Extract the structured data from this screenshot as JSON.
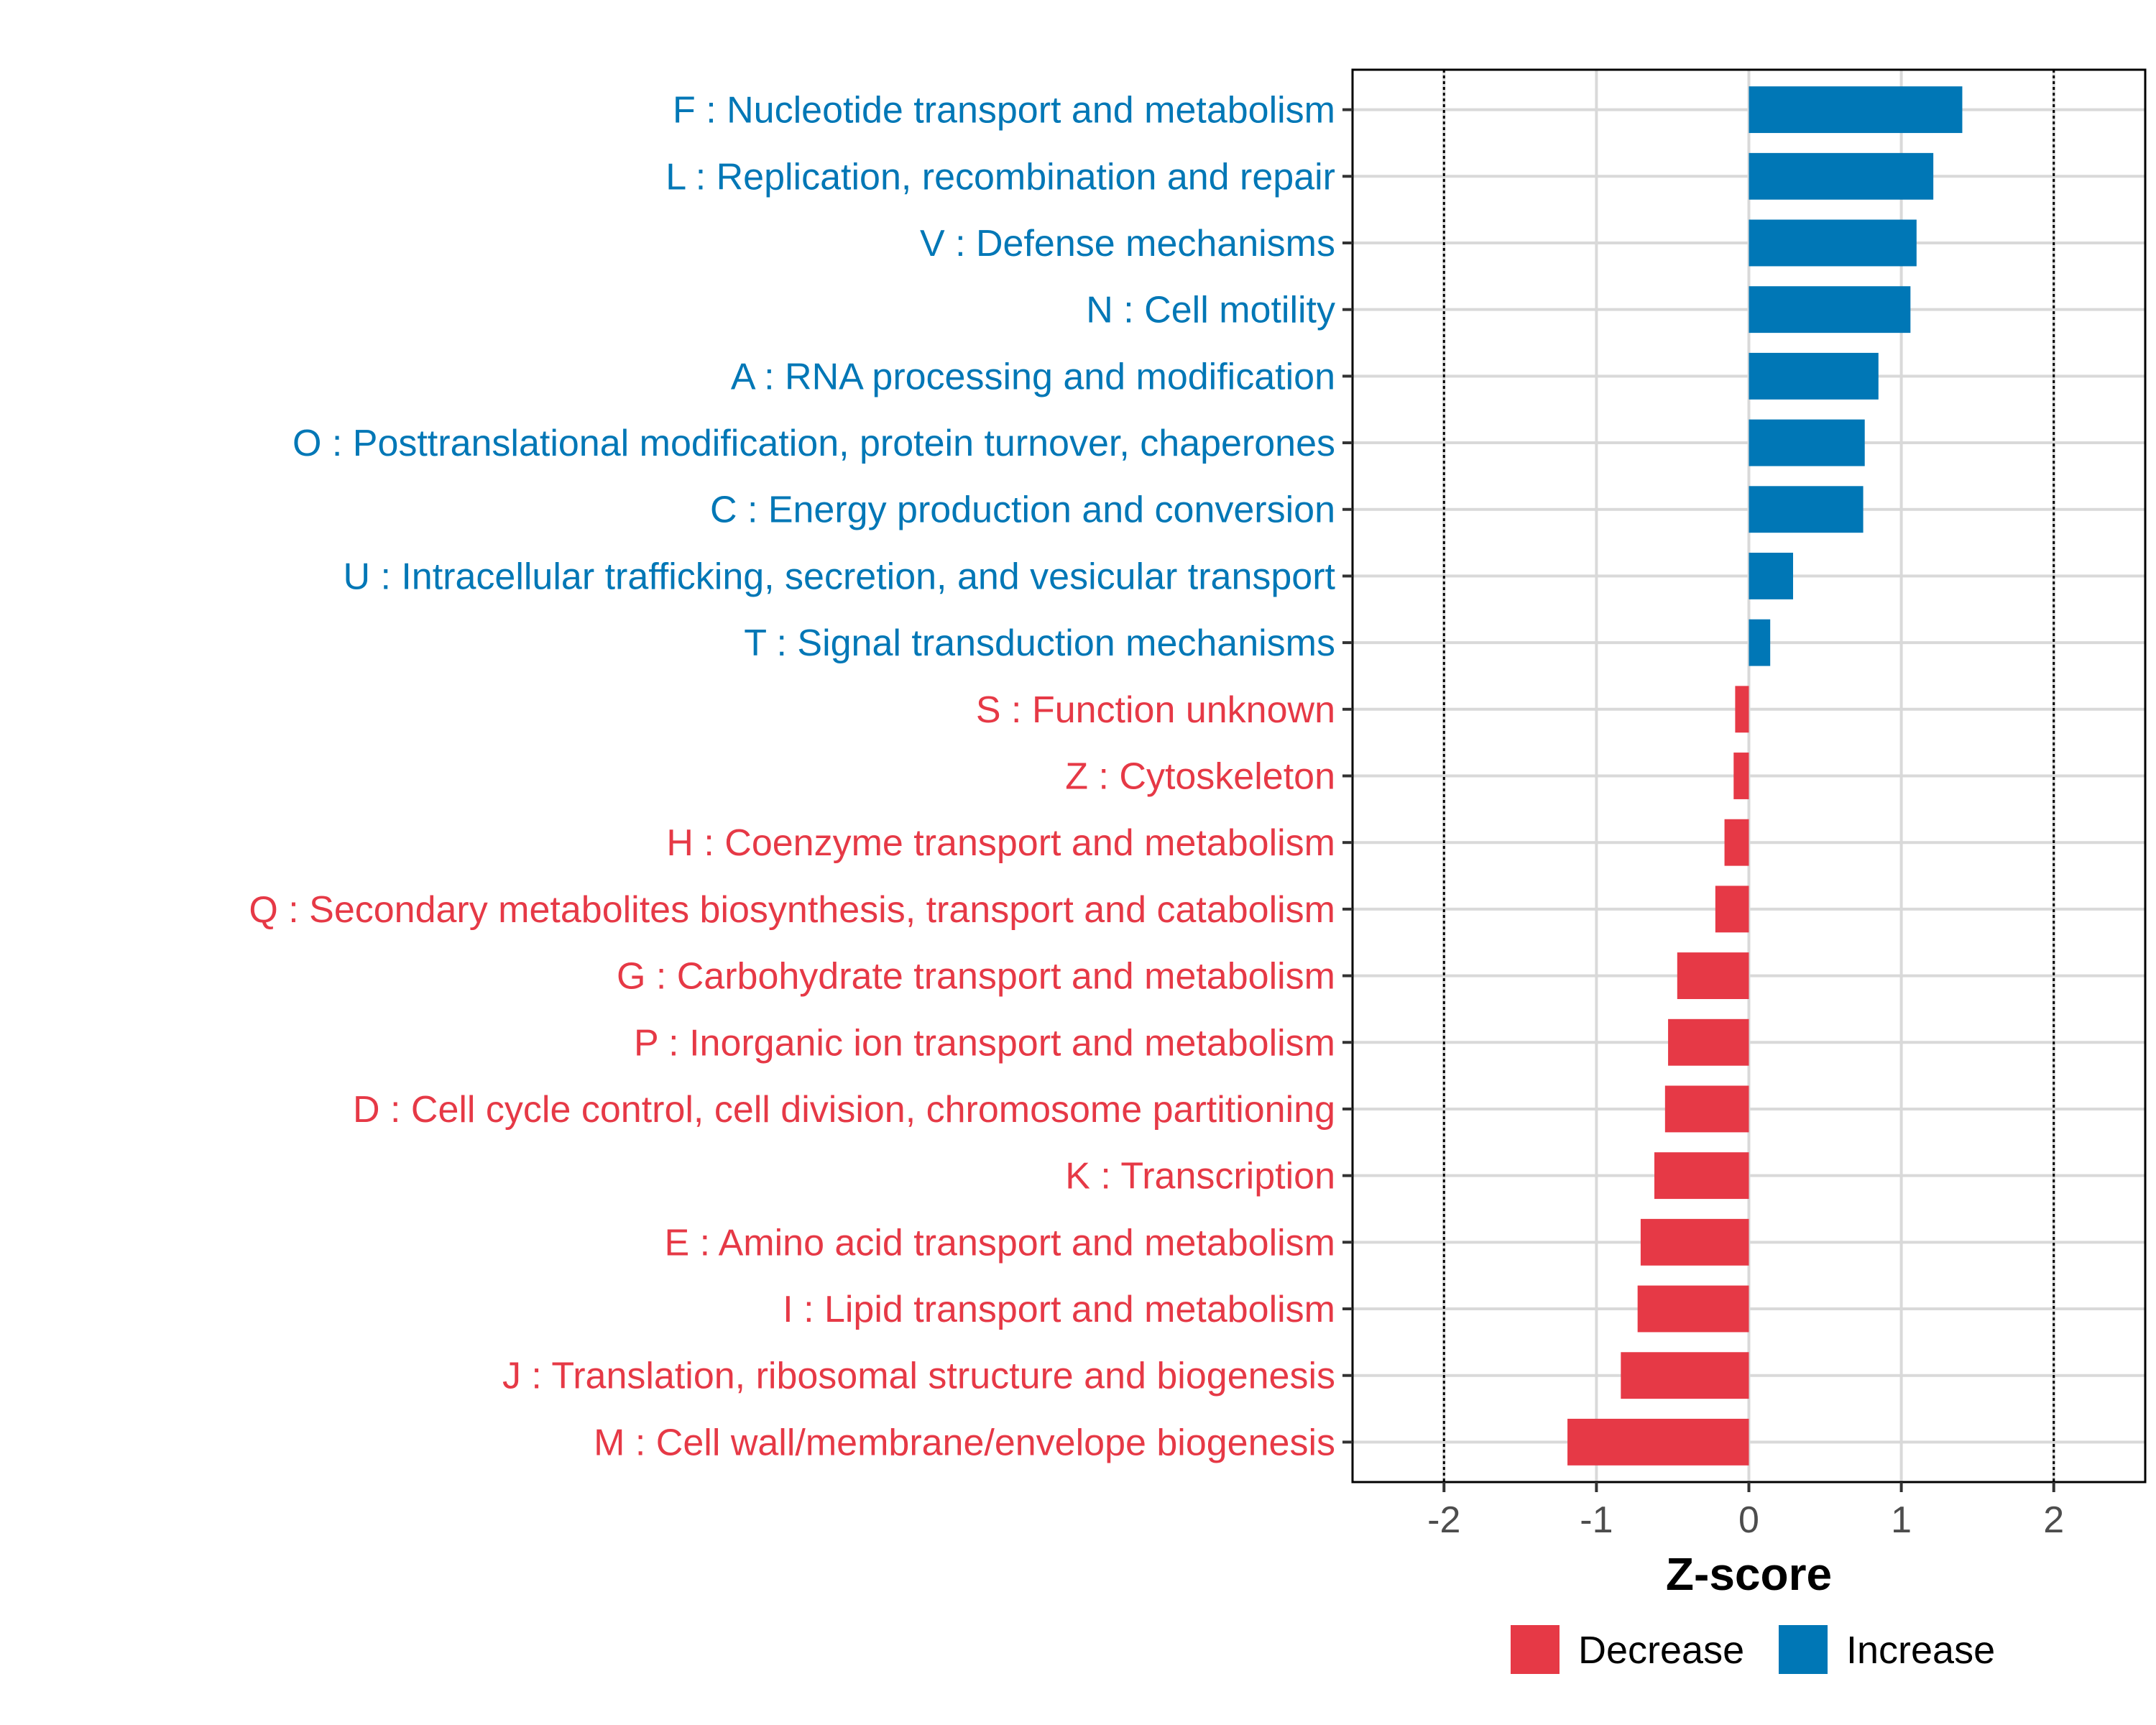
{
  "chart_data": {
    "type": "bar",
    "orientation": "horizontal",
    "title": "",
    "xlabel": "Z-score",
    "ylabel": "",
    "xlim": [
      -2.6,
      2.6
    ],
    "x_ticks": [
      -2,
      -1,
      0,
      1,
      2
    ],
    "x_tick_labels": [
      "-2",
      "-1",
      "0",
      "1",
      "2"
    ],
    "reference_lines": [
      -2,
      2
    ],
    "grid": true,
    "legend_position": "bottom",
    "legend": [
      {
        "key": "decrease",
        "label": "Decrease",
        "color": "#e63946"
      },
      {
        "key": "increase",
        "label": "Increase",
        "color": "#0077b6"
      }
    ],
    "categories": [
      "F : Nucleotide transport and metabolism",
      "L : Replication, recombination and repair",
      "V : Defense mechanisms",
      "N : Cell motility",
      "A : RNA processing and modification",
      "O : Posttranslational modification, protein turnover, chaperones",
      "C : Energy production and conversion",
      "U : Intracellular trafficking, secretion, and vesicular transport",
      "T : Signal transduction mechanisms",
      "S : Function unknown",
      "Z : Cytoskeleton",
      "H : Coenzyme transport and metabolism",
      "Q : Secondary metabolites biosynthesis, transport and catabolism",
      "G : Carbohydrate transport and metabolism",
      "P : Inorganic ion transport and metabolism",
      "D : Cell cycle control, cell division, chromosome partitioning",
      "K : Transcription",
      "E : Amino acid transport and metabolism",
      "I : Lipid transport and metabolism",
      "J : Translation, ribosomal structure and biogenesis",
      "M : Cell wall/membrane/envelope biogenesis"
    ],
    "values": [
      1.4,
      1.21,
      1.1,
      1.06,
      0.85,
      0.76,
      0.75,
      0.29,
      0.14,
      -0.09,
      -0.1,
      -0.16,
      -0.22,
      -0.47,
      -0.53,
      -0.55,
      -0.62,
      -0.71,
      -0.73,
      -0.84,
      -1.19
    ],
    "groups": [
      "increase",
      "increase",
      "increase",
      "increase",
      "increase",
      "increase",
      "increase",
      "increase",
      "increase",
      "decrease",
      "decrease",
      "decrease",
      "decrease",
      "decrease",
      "decrease",
      "decrease",
      "decrease",
      "decrease",
      "decrease",
      "decrease",
      "decrease"
    ]
  }
}
